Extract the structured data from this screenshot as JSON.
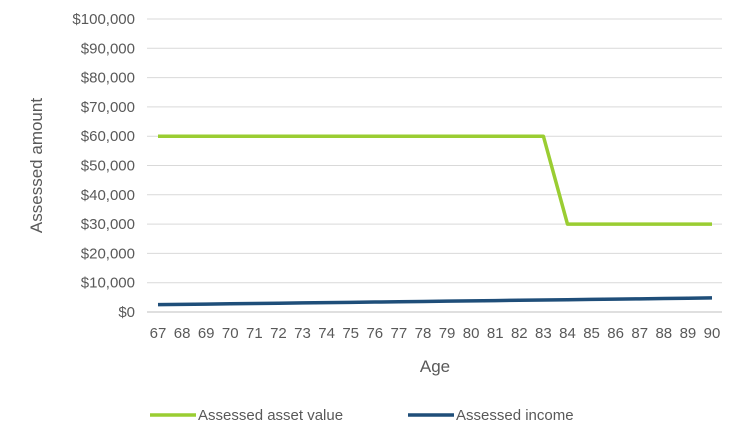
{
  "chart_data": {
    "type": "line",
    "title": "",
    "xlabel": "Age",
    "ylabel": "Assessed amount",
    "x": [
      67,
      68,
      69,
      70,
      71,
      72,
      73,
      74,
      75,
      76,
      77,
      78,
      79,
      80,
      81,
      82,
      83,
      84,
      85,
      86,
      87,
      88,
      89,
      90
    ],
    "x_tick_labels": [
      "67",
      "68",
      "69",
      "70",
      "71",
      "72",
      "73",
      "74",
      "75",
      "76",
      "77",
      "78",
      "79",
      "80",
      "81",
      "82",
      "83",
      "84",
      "85",
      "86",
      "87",
      "88",
      "89",
      "90"
    ],
    "ylim": [
      0,
      100000
    ],
    "y_ticks": [
      0,
      10000,
      20000,
      30000,
      40000,
      50000,
      60000,
      70000,
      80000,
      90000,
      100000
    ],
    "y_tick_labels": [
      "$0",
      "$10,000",
      "$20,000",
      "$30,000",
      "$40,000",
      "$50,000",
      "$60,000",
      "$70,000",
      "$80,000",
      "$90,000",
      "$100,000"
    ],
    "grid": true,
    "legend_position": "bottom",
    "series": [
      {
        "name": "Assessed asset value",
        "color": "#9ACD32",
        "values": [
          60000,
          60000,
          60000,
          60000,
          60000,
          60000,
          60000,
          60000,
          60000,
          60000,
          60000,
          60000,
          60000,
          60000,
          60000,
          60000,
          60000,
          30000,
          30000,
          30000,
          30000,
          30000,
          30000,
          30000
        ]
      },
      {
        "name": "Assessed income",
        "color": "#1F4E79",
        "values": [
          2500,
          2600,
          2700,
          2800,
          2900,
          3000,
          3100,
          3200,
          3300,
          3400,
          3500,
          3600,
          3700,
          3800,
          3900,
          4000,
          4100,
          4200,
          4300,
          4400,
          4500,
          4600,
          4700,
          4800
        ]
      }
    ]
  }
}
